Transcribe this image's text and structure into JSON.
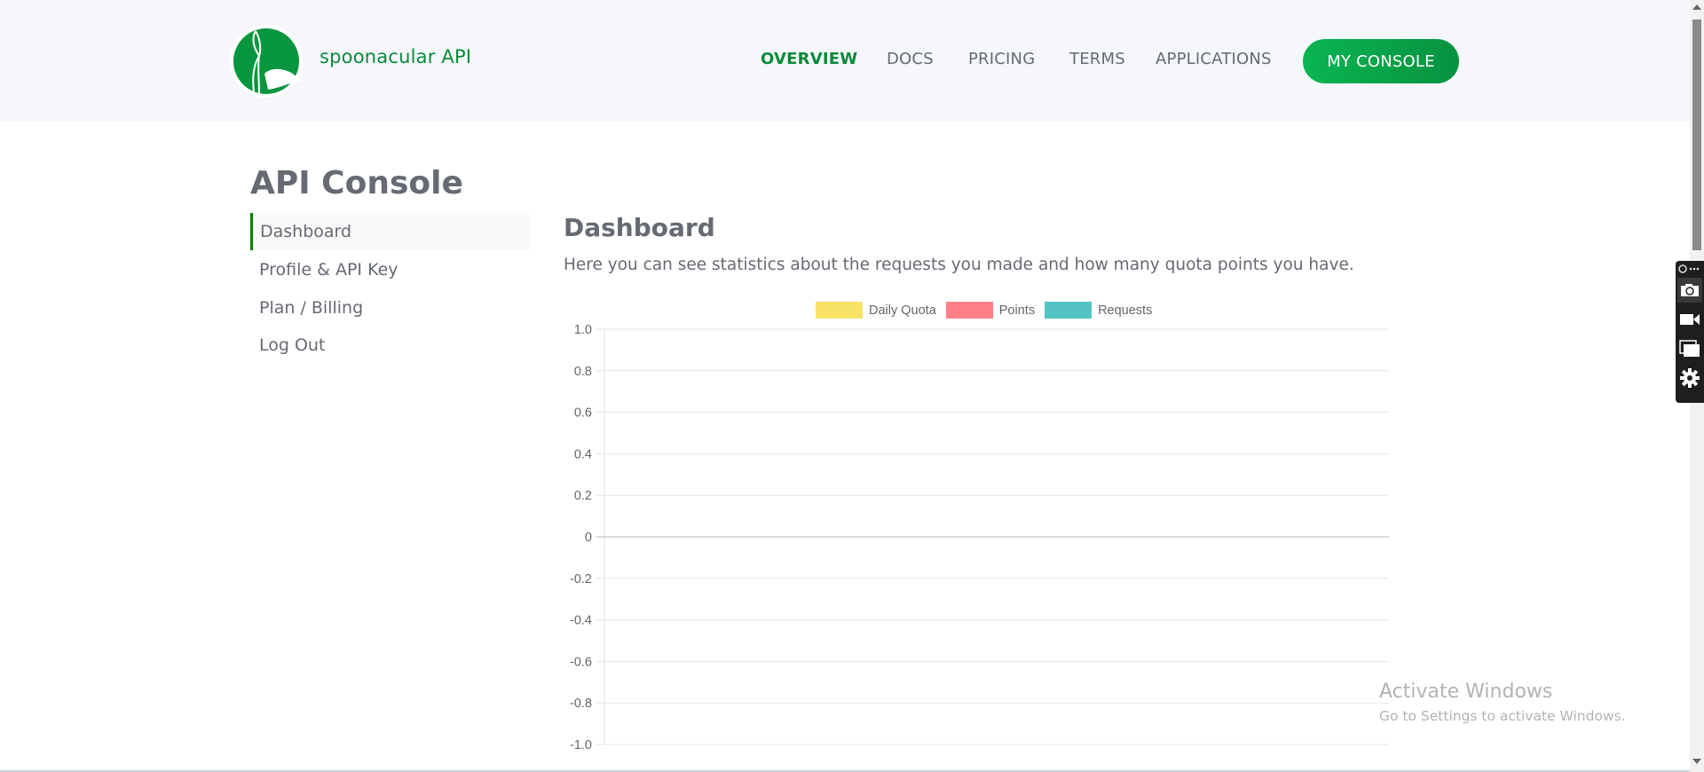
{
  "header": {
    "brand": "spoonacular API",
    "nav": [
      {
        "label": "OVERVIEW",
        "active": true
      },
      {
        "label": "DOCS"
      },
      {
        "label": "PRICING"
      },
      {
        "label": "TERMS"
      },
      {
        "label": "APPLICATIONS"
      }
    ],
    "console_button": "MY CONSOLE",
    "brand_color": "#0a8a3a"
  },
  "sidebar": {
    "title": "API Console",
    "items": [
      {
        "label": "Dashboard",
        "active": true
      },
      {
        "label": "Profile & API Key"
      },
      {
        "label": "Plan / Billing"
      },
      {
        "label": "Log Out"
      }
    ]
  },
  "main": {
    "title": "Dashboard",
    "description": "Here you can see statistics about the requests you made and how many quota points you have."
  },
  "chart_data": {
    "type": "line",
    "legend": [
      {
        "name": "Daily Quota",
        "color": "#f8e05f"
      },
      {
        "name": "Points",
        "color": "#ff7a80"
      },
      {
        "name": "Requests",
        "color": "#4bc0c0"
      }
    ],
    "legend_position": "top",
    "series": [
      {
        "name": "Daily Quota",
        "values": []
      },
      {
        "name": "Points",
        "values": []
      },
      {
        "name": "Requests",
        "values": []
      }
    ],
    "y_ticks": [
      "1.0",
      "0.8",
      "0.6",
      "0.4",
      "0.2",
      "0",
      "-0.2",
      "-0.4",
      "-0.6",
      "-0.8",
      "-1.0"
    ],
    "ylim": [
      -1,
      1
    ],
    "grid": true
  },
  "overlay": {
    "watermark_title": "Activate Windows",
    "watermark_sub": "Go to Settings to activate Windows."
  }
}
